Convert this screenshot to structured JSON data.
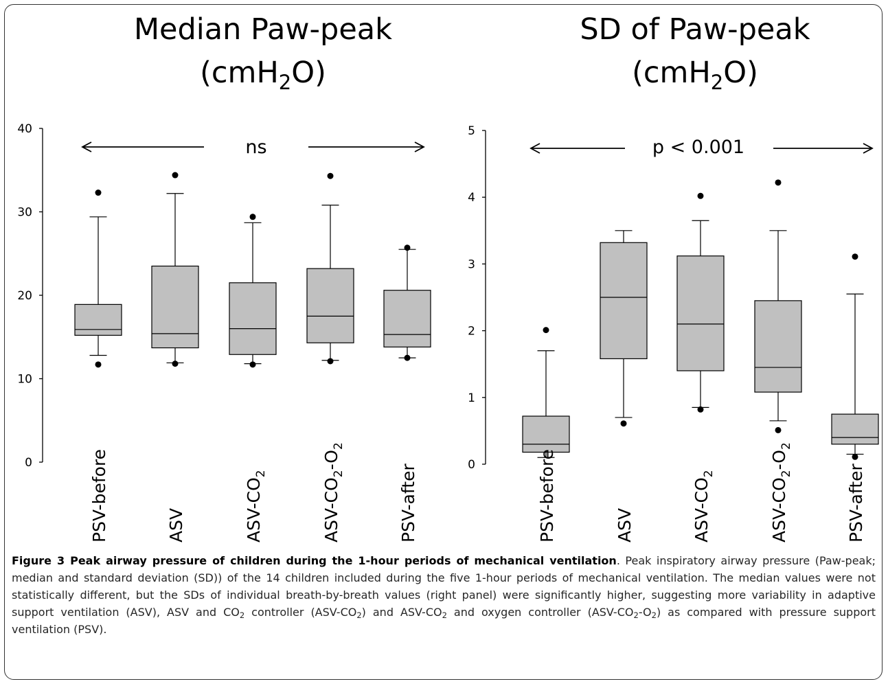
{
  "chart_data": [
    {
      "type": "box",
      "title": "Median Paw-peak",
      "title_unit": {
        "prefix": "(cmH",
        "sub": "2",
        "suffix": "O)"
      },
      "annotation": "ns",
      "ylim": [
        0,
        40
      ],
      "yticks": [
        "0",
        "10",
        "20",
        "30",
        "40"
      ],
      "categories": [
        {
          "base": "PSV-before"
        },
        {
          "base": "ASV"
        },
        {
          "base": "ASV-CO",
          "sub": "2"
        },
        {
          "base": "ASV-CO",
          "sub": "2",
          "mid": "-O",
          "sub2": "2"
        },
        {
          "base": "PSV-after"
        }
      ],
      "boxes": [
        {
          "whisker_low": 12.8,
          "q1": 15.2,
          "median": 15.9,
          "q3": 18.9,
          "whisker_high": 29.4,
          "outliers": [
            11.7,
            32.3
          ]
        },
        {
          "whisker_low": 11.9,
          "q1": 13.7,
          "median": 15.4,
          "q3": 23.5,
          "whisker_high": 32.2,
          "outliers": [
            11.8,
            34.4
          ]
        },
        {
          "whisker_low": 11.8,
          "q1": 12.9,
          "median": 16.0,
          "q3": 21.5,
          "whisker_high": 28.7,
          "outliers": [
            11.7,
            29.4
          ]
        },
        {
          "whisker_low": 12.2,
          "q1": 14.3,
          "median": 17.5,
          "q3": 23.2,
          "whisker_high": 30.8,
          "outliers": [
            12.1,
            34.3
          ]
        },
        {
          "whisker_low": 12.5,
          "q1": 13.8,
          "median": 15.3,
          "q3": 20.6,
          "whisker_high": 25.5,
          "outliers": [
            12.5,
            25.7
          ]
        }
      ]
    },
    {
      "type": "box",
      "title": "SD of Paw-peak",
      "title_unit": {
        "prefix": "(cmH",
        "sub": "2",
        "suffix": "O)"
      },
      "annotation": "p < 0.001",
      "ylim": [
        0,
        5
      ],
      "yticks": [
        "0",
        "1",
        "2",
        "3",
        "4",
        "5"
      ],
      "categories": [
        {
          "base": "PSV-before"
        },
        {
          "base": "ASV"
        },
        {
          "base": "ASV-CO",
          "sub": "2"
        },
        {
          "base": "ASV-CO",
          "sub": "2",
          "mid": "-O",
          "sub2": "2"
        },
        {
          "base": "PSV-after"
        }
      ],
      "boxes": [
        {
          "whisker_low": 0.1,
          "q1": 0.18,
          "median": 0.3,
          "q3": 0.72,
          "whisker_high": 1.7,
          "outliers": [
            2.01
          ]
        },
        {
          "whisker_low": 0.7,
          "q1": 1.58,
          "median": 2.5,
          "q3": 3.32,
          "whisker_high": 3.5,
          "outliers": [
            0.61
          ]
        },
        {
          "whisker_low": 0.85,
          "q1": 1.4,
          "median": 2.1,
          "q3": 3.12,
          "whisker_high": 3.65,
          "outliers": [
            0.82,
            4.02
          ]
        },
        {
          "whisker_low": 0.65,
          "q1": 1.08,
          "median": 1.45,
          "q3": 2.45,
          "whisker_high": 3.5,
          "outliers": [
            0.51,
            4.22
          ]
        },
        {
          "whisker_low": 0.15,
          "q1": 0.3,
          "median": 0.4,
          "q3": 0.75,
          "whisker_high": 2.55,
          "outliers": [
            0.11,
            3.11
          ]
        }
      ]
    }
  ],
  "caption": {
    "bold": "Figure 3 Peak airway pressure of children during the 1-hour periods of mechanical ventilation",
    "t1": ". Peak inspiratory airway pressure (Paw-peak; median and standard deviation (SD)) of the 14 children included during the five 1-hour periods of mechanical ventilation. The median values were not statistically different, but the SDs of individual breath-by-breath values (right panel) were significantly higher, suggesting more variability in adaptive support ventilation (ASV), ASV and CO",
    "s1": "2",
    "t2": " controller (ASV-CO",
    "s2": "2",
    "t3": ") and ASV-CO",
    "s3": "2",
    "t4": " and oxygen controller (ASV-CO",
    "s4": "2",
    "t5": "-O",
    "s5": "2",
    "t6": ") as compared with pressure support ventilation (PSV)."
  }
}
